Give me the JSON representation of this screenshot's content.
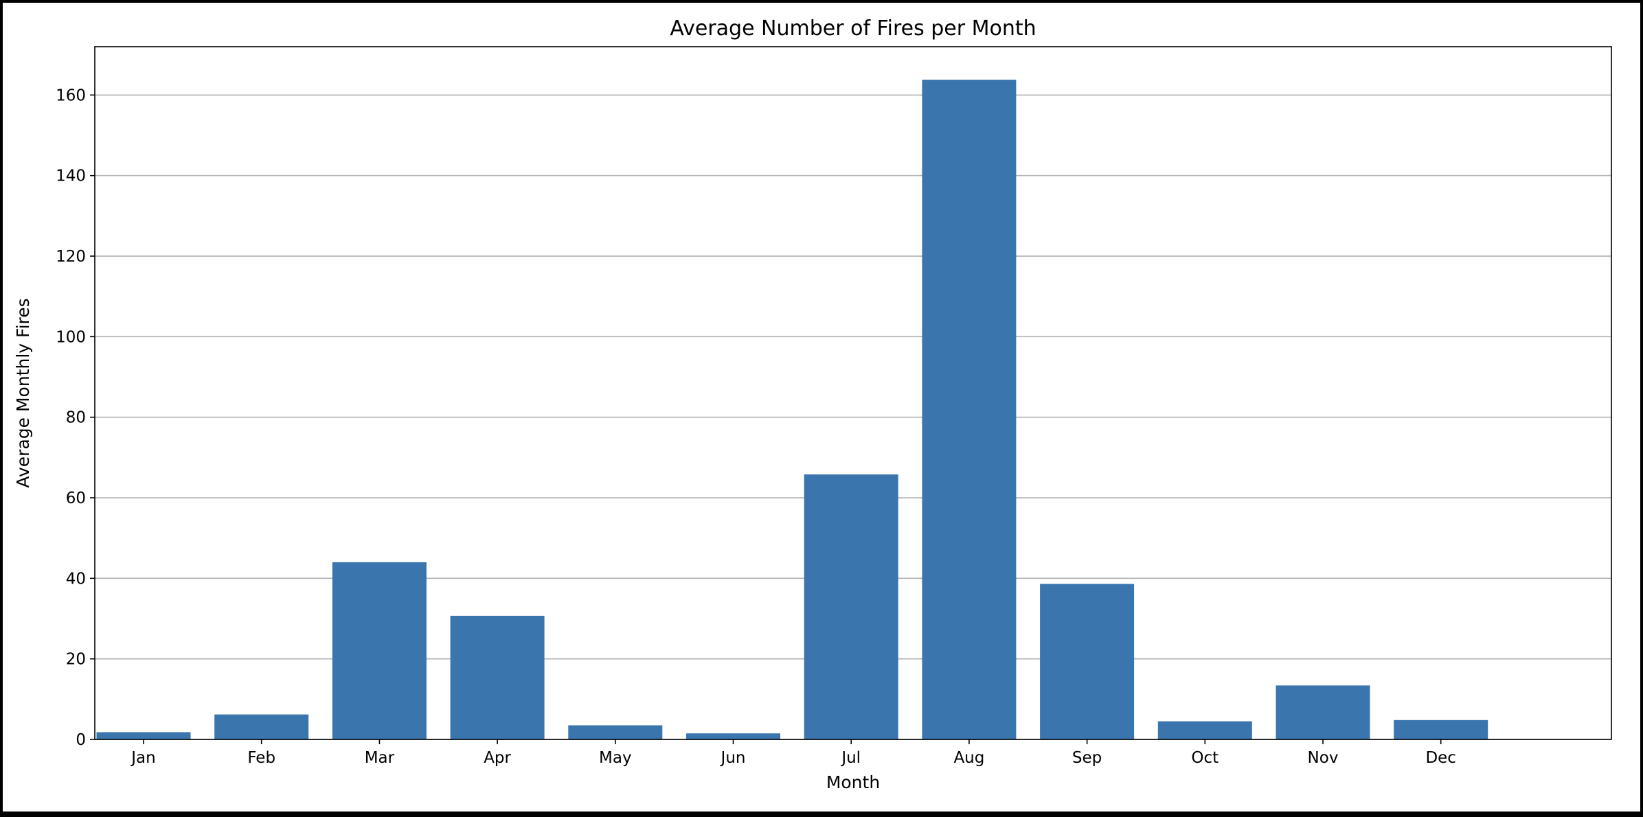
{
  "chart_data": {
    "type": "bar",
    "title": "Average Number of Fires per Month",
    "xlabel": "Month",
    "ylabel": "Average Monthly Fires",
    "categories": [
      "Jan",
      "Feb",
      "Mar",
      "Apr",
      "May",
      "Jun",
      "Jul",
      "Aug",
      "Sep",
      "Oct",
      "Nov",
      "Dec"
    ],
    "values": [
      1.8,
      6.2,
      44.0,
      30.7,
      3.5,
      1.5,
      65.8,
      163.8,
      38.6,
      4.5,
      13.4,
      4.8
    ],
    "ylim": [
      0,
      172
    ],
    "yticks": [
      0,
      20,
      40,
      60,
      80,
      100,
      120,
      140,
      160
    ],
    "grid": "y",
    "legend": "none",
    "bar_color": "#3a75ae"
  }
}
